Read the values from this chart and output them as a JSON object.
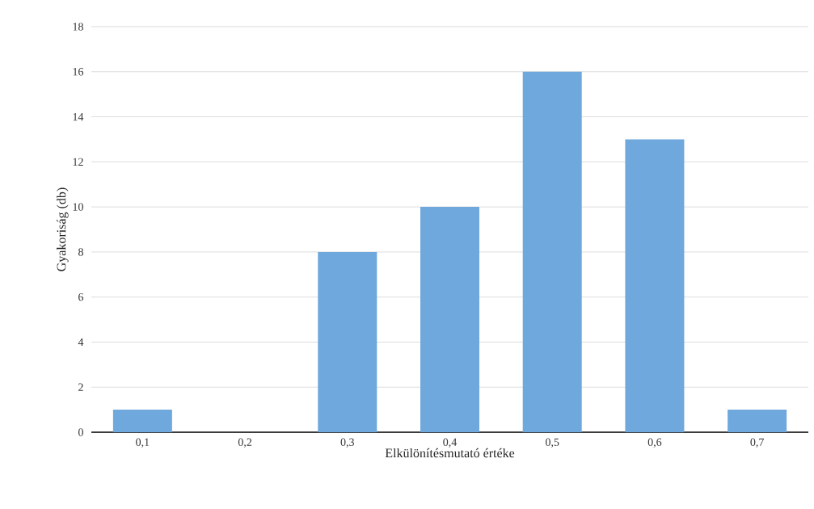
{
  "chart_data": {
    "type": "bar",
    "xlabel": "Elkülönítésmutató értéke",
    "ylabel": "Gyakoriság (db)",
    "categories": [
      "0,1",
      "0,2",
      "0,3",
      "0,4",
      "0,5",
      "0,6",
      "0,7"
    ],
    "values": [
      1,
      0,
      8,
      10,
      16,
      13,
      1
    ],
    "color": "#6fa8dc",
    "ylim": [
      0,
      18
    ],
    "yticks": [
      0,
      2,
      4,
      6,
      8,
      10,
      12,
      14,
      16,
      18
    ],
    "grid": "y"
  }
}
